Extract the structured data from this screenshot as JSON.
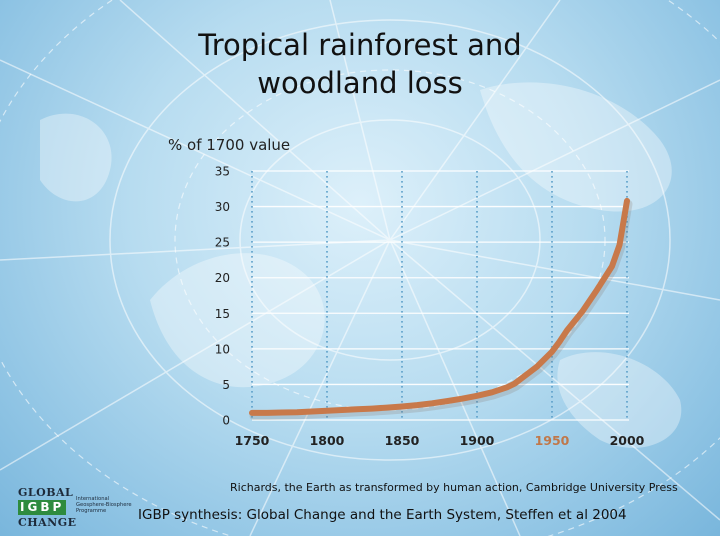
{
  "slide": {
    "title_line1": "Tropical rainforest and",
    "title_line2": "woodland loss",
    "source": "Richards, the Earth as transformed by human action, Cambridge University Press",
    "credit": "IGBP synthesis: Global Change and the Earth System, Steffen et al 2004"
  },
  "logo": {
    "line1": "GLOBAL",
    "line2": "IGBP",
    "line3": "CHANGE",
    "subtitle": "International Geosphere-Biosphere Programme"
  },
  "chart_data": {
    "type": "line",
    "title": "Tropical rainforest and woodland loss",
    "ylabel": "% of 1700 value",
    "xlabel": "",
    "xlim": [
      1750,
      2000
    ],
    "ylim": [
      0,
      35
    ],
    "x_ticks": [
      1750,
      1800,
      1850,
      1900,
      1950,
      2000
    ],
    "y_ticks": [
      0,
      5,
      10,
      15,
      20,
      25,
      30,
      35
    ],
    "highlight_tick": 1950,
    "grid": true,
    "colors": {
      "line": "#c8794a",
      "highlight_tick": "#c0784a",
      "hgrid": "#ffffff",
      "vgrid": "#5a9ec8"
    },
    "series": [
      {
        "x": [
          1750,
          1760,
          1770,
          1780,
          1790,
          1800,
          1810,
          1820,
          1830,
          1840,
          1850,
          1860,
          1870,
          1880,
          1890,
          1900,
          1910,
          1920,
          1925,
          1930,
          1940,
          1950,
          1955,
          1960,
          1970,
          1980,
          1990,
          1995,
          2000
        ],
        "y": [
          1.0,
          1.0,
          1.05,
          1.1,
          1.2,
          1.3,
          1.4,
          1.5,
          1.6,
          1.75,
          1.9,
          2.1,
          2.35,
          2.65,
          3.0,
          3.4,
          3.9,
          4.6,
          5.1,
          5.9,
          7.5,
          9.6,
          11.0,
          12.6,
          15.2,
          18.3,
          21.6,
          24.6,
          30.8
        ]
      }
    ]
  }
}
